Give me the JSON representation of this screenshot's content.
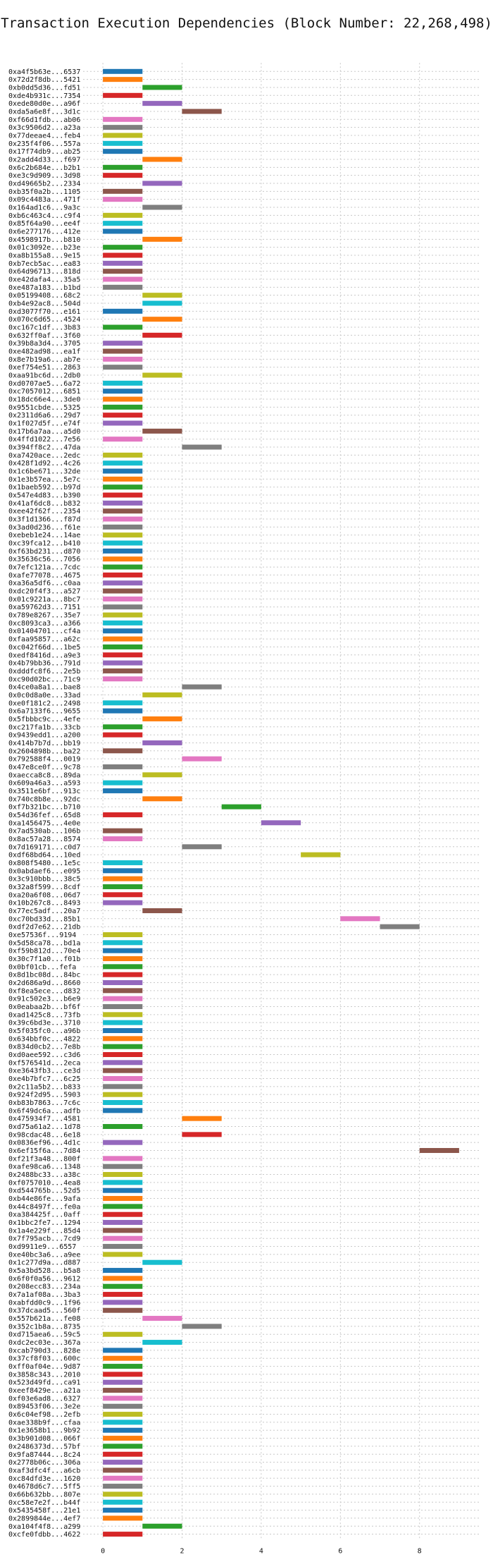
{
  "chart_data": {
    "type": "bar",
    "orientation": "horizontal-gantt",
    "title": "Transaction Execution Dependencies (Block Number: 22,268,498)",
    "xlabel": "",
    "ylabel": "",
    "xlim": [
      -0.5,
      9.5
    ],
    "xticks": [
      0,
      2,
      4,
      6,
      8
    ],
    "grid": true,
    "colors": [
      "#1f77b4",
      "#ff7f0e",
      "#2ca02c",
      "#d62728",
      "#9467bd",
      "#8c564b",
      "#e377c2",
      "#7f7f7f",
      "#bcbd22",
      "#17becf"
    ],
    "transactions": [
      [
        "0xa4f5b63e...6537",
        0
      ],
      [
        "0x72d2f8db...5421",
        0
      ],
      [
        "0xb0dd5d36...fd51",
        1
      ],
      [
        "0xde4b931c...7354",
        0
      ],
      [
        "0xede80d0e...a96f",
        1
      ],
      [
        "0xda5a6e8f...3d1c",
        2
      ],
      [
        "0xf66d1fdb...ab06",
        0
      ],
      [
        "0x3c9506d2...a23a",
        0
      ],
      [
        "0x77deeae4...feb4",
        0
      ],
      [
        "0x235f4f06...557a",
        0
      ],
      [
        "0x17f74db9...ab25",
        0
      ],
      [
        "0x2add4d33...f697",
        1
      ],
      [
        "0x6c2b684e...b2b1",
        0
      ],
      [
        "0xe3c9d909...3d98",
        0
      ],
      [
        "0xd49665b2...2334",
        1
      ],
      [
        "0xb35f0a2b...1105",
        0
      ],
      [
        "0x09c4483a...471f",
        0
      ],
      [
        "0x164ad1c6...9a3c",
        1
      ],
      [
        "0xb6c463c4...c9f4",
        0
      ],
      [
        "0x85f64a90...ee4f",
        0
      ],
      [
        "0x6e277176...412e",
        0
      ],
      [
        "0x4598917b...b810",
        1
      ],
      [
        "0x01c3092e...b23e",
        0
      ],
      [
        "0xa8b155a8...9e15",
        0
      ],
      [
        "0xb7ecb5ac...ea83",
        0
      ],
      [
        "0x64d96713...818d",
        0
      ],
      [
        "0xe42dafa4...35a5",
        0
      ],
      [
        "0xe487a183...b1bd",
        0
      ],
      [
        "0x05199408...68c2",
        1
      ],
      [
        "0xb4e92ac8...504d",
        1
      ],
      [
        "0xd3077f70...e161",
        0
      ],
      [
        "0x070c6d65...4524",
        1
      ],
      [
        "0xc167c1df...3b83",
        0
      ],
      [
        "0x632ff0af...3f60",
        1
      ],
      [
        "0x39b8a3d4...3705",
        0
      ],
      [
        "0xe482ad98...ea1f",
        0
      ],
      [
        "0x8e7b19a6...ab7e",
        0
      ],
      [
        "0xef754e51...2863",
        0
      ],
      [
        "0xaa91bc6d...2db0",
        1
      ],
      [
        "0xd0707ae5...6a72",
        0
      ],
      [
        "0xc7057012...6851",
        0
      ],
      [
        "0x18dc66e4...3de0",
        0
      ],
      [
        "0x9551cbde...5325",
        0
      ],
      [
        "0x2311d6a6...29d7",
        0
      ],
      [
        "0x1f027d5f...e74f",
        0
      ],
      [
        "0x17b6a7aa...a5d0",
        1
      ],
      [
        "0x4ffd1022...7e56",
        0
      ],
      [
        "0x394ff8c2...47da",
        2
      ],
      [
        "0xa7420ace...2edc",
        0
      ],
      [
        "0x428f1d92...4c26",
        0
      ],
      [
        "0x1c6be671...32de",
        0
      ],
      [
        "0x1e3b57ea...5e7c",
        0
      ],
      [
        "0x1baeb592...b97d",
        0
      ],
      [
        "0x547e4d83...b390",
        0
      ],
      [
        "0x41af6dc8...b832",
        0
      ],
      [
        "0xee42f62f...2354",
        0
      ],
      [
        "0x3f1d1366...f87d",
        0
      ],
      [
        "0x3ad0d236...f61e",
        0
      ],
      [
        "0xebeb1e24...14ae",
        0
      ],
      [
        "0xc39fca12...b410",
        0
      ],
      [
        "0xf63bd231...d870",
        0
      ],
      [
        "0x35636c56...7056",
        0
      ],
      [
        "0x7efc121a...7cdc",
        0
      ],
      [
        "0xafe77078...4675",
        0
      ],
      [
        "0xa36a5df6...c0aa",
        0
      ],
      [
        "0xdc20f4f3...a527",
        0
      ],
      [
        "0x01c9221a...8bc7",
        0
      ],
      [
        "0xa59762d3...7151",
        0
      ],
      [
        "0x789e8267...35e7",
        0
      ],
      [
        "0xc8093ca3...a366",
        0
      ],
      [
        "0x01404701...cf4a",
        0
      ],
      [
        "0xfaa95857...a62c",
        0
      ],
      [
        "0xc042f66d...1be5",
        0
      ],
      [
        "0xedf8416d...a9e3",
        0
      ],
      [
        "0x4b79bb36...791d",
        0
      ],
      [
        "0xdddfc8f6...2e5b",
        0
      ],
      [
        "0xc90d02bc...71c9",
        0
      ],
      [
        "0x4ce0a8a1...bae8",
        2
      ],
      [
        "0x0c0d8a0e...33ad",
        1
      ],
      [
        "0xe0f181c2...2498",
        0
      ],
      [
        "0x6a7133f6...9655",
        0
      ],
      [
        "0x5fbbbc9c...4efe",
        1
      ],
      [
        "0xc217fa1b...33cb",
        0
      ],
      [
        "0x9439edd1...a200",
        0
      ],
      [
        "0x414b7b7d...bb19",
        1
      ],
      [
        "0x2604898b...ba22",
        0
      ],
      [
        "0x792588f4...0019",
        2
      ],
      [
        "0x47e8ce0f...9c78",
        0
      ],
      [
        "0xaecca8c8...89da",
        1
      ],
      [
        "0x609a46a3...a593",
        0
      ],
      [
        "0x3511e6bf...913c",
        0
      ],
      [
        "0x740c8b8e...92dc",
        1
      ],
      [
        "0xf7b321bc...b710",
        3
      ],
      [
        "0x54d36fef...65d8",
        0
      ],
      [
        "0xa1456475...4e0e",
        4
      ],
      [
        "0x7ad530ab...106b",
        0
      ],
      [
        "0x8ac57a28...8574",
        0
      ],
      [
        "0x7d169171...c0d7",
        2
      ],
      [
        "0xdf68bd64...10ed",
        5
      ],
      [
        "0x808f5480...1e5c",
        0
      ],
      [
        "0x0abdaef6...e095",
        0
      ],
      [
        "0x3c910bbb...38c5",
        0
      ],
      [
        "0x32a8f599...8cdf",
        0
      ],
      [
        "0xa20a6f08...06d7",
        0
      ],
      [
        "0x10b267c8...8493",
        0
      ],
      [
        "0x77ec5adf...20a7",
        1
      ],
      [
        "0xc70bd33d...85b1",
        6
      ],
      [
        "0xdf2d7e62...21db",
        7
      ],
      [
        "0xe57536f...9194",
        0
      ],
      [
        "0x5d58ca78...bd1a",
        0
      ],
      [
        "0xf59b812d...70e4",
        0
      ],
      [
        "0x30c7f1a0...f01b",
        0
      ],
      [
        "0x0bf01cb...fefa",
        0
      ],
      [
        "0x8d1bc08d...84bc",
        0
      ],
      [
        "0x2d686a9d...8660",
        0
      ],
      [
        "0xf8ea5ece...d832",
        0
      ],
      [
        "0x91c502e3...b6e9",
        0
      ],
      [
        "0x0eabaa2b...bf6f",
        0
      ],
      [
        "0xad1425c8...73fb",
        0
      ],
      [
        "0x39c6bd3e...3710",
        0
      ],
      [
        "0x5f035fc0...a96b",
        0
      ],
      [
        "0x634bbf0c...4822",
        0
      ],
      [
        "0x834d0cb2...7e8b",
        0
      ],
      [
        "0xd0aee592...c3d6",
        0
      ],
      [
        "0xf576541d...2eca",
        0
      ],
      [
        "0xe3643fb3...ce3d",
        0
      ],
      [
        "0xe4b7bfc7...6c25",
        0
      ],
      [
        "0x2c11a5b2...b833",
        0
      ],
      [
        "0x924f2d95...5903",
        0
      ],
      [
        "0xb83b7863...7c6c",
        0
      ],
      [
        "0x6f49dc6a...adfb",
        0
      ],
      [
        "0x475934f7...4581",
        2
      ],
      [
        "0xd75a61a2...1d78",
        0
      ],
      [
        "0x98cdac48...6e18",
        2
      ],
      [
        "0x0836ef96...4d1c",
        0
      ],
      [
        "0x6ef15f6a...7d84",
        8
      ],
      [
        "0xf21f3a48...800f",
        0
      ],
      [
        "0xafe98ca6...1348",
        0
      ],
      [
        "0x2488bc33...a38c",
        0
      ],
      [
        "0xf0757010...4ea8",
        0
      ],
      [
        "0xd544765b...52d5",
        0
      ],
      [
        "0xb44e86fe...9afa",
        0
      ],
      [
        "0x44c8497f...fe0a",
        0
      ],
      [
        "0xa384425f...0aff",
        0
      ],
      [
        "0x1bbc2fe7...1294",
        0
      ],
      [
        "0x1a4e229f...85d4",
        0
      ],
      [
        "0x7f795acb...7cd9",
        0
      ],
      [
        "0xd9911e9...6557",
        0
      ],
      [
        "0xe40bc3a6...a9ee",
        0
      ],
      [
        "0x1c277d9a...d887",
        1
      ],
      [
        "0x5a3bd528...b5a8",
        0
      ],
      [
        "0x6f0f0a56...9612",
        0
      ],
      [
        "0x208ecc83...234a",
        0
      ],
      [
        "0x7a1af08a...3ba3",
        0
      ],
      [
        "0xabfdd0c9...1f96",
        0
      ],
      [
        "0x37dcaad5...560f",
        0
      ],
      [
        "0x557b621a...fe08",
        1
      ],
      [
        "0x352c1b8a...8735",
        2
      ],
      [
        "0xd715aea6...59c5",
        0
      ],
      [
        "0xdc2ec03e...367a",
        1
      ],
      [
        "0xcab790d3...828e",
        0
      ],
      [
        "0x37cf8f03...600c",
        0
      ],
      [
        "0xff0af04e...9d87",
        0
      ],
      [
        "0x3858c343...2010",
        0
      ],
      [
        "0x523d49fd...ca91",
        0
      ],
      [
        "0xeef8429e...a21a",
        0
      ],
      [
        "0xf03e6ad8...6327",
        0
      ],
      [
        "0x89453f06...3e2e",
        0
      ],
      [
        "0x6c04ef98...2efb",
        0
      ],
      [
        "0xae338b9f...cfaa",
        0
      ],
      [
        "0x1e3658b1...9b92",
        0
      ],
      [
        "0x3b901d08...066f",
        0
      ],
      [
        "0x2486373d...57bf",
        0
      ],
      [
        "0x9fa87444...8c24",
        0
      ],
      [
        "0x2778b06c...306a",
        0
      ],
      [
        "0xaf3dfc4f...a6cb",
        0
      ],
      [
        "0xc84dfd3e...1620",
        0
      ],
      [
        "0x4678d6c7...5ff5",
        0
      ],
      [
        "0x66b632bb...807e",
        0
      ],
      [
        "0xc58e7e2f...b44f",
        0
      ],
      [
        "0x5435458f...21e1",
        0
      ],
      [
        "0x2899844e...4ef7",
        0
      ],
      [
        "0xa104f4f8...a299",
        1
      ],
      [
        "0xcfe0fdbb...4622",
        0
      ]
    ]
  }
}
